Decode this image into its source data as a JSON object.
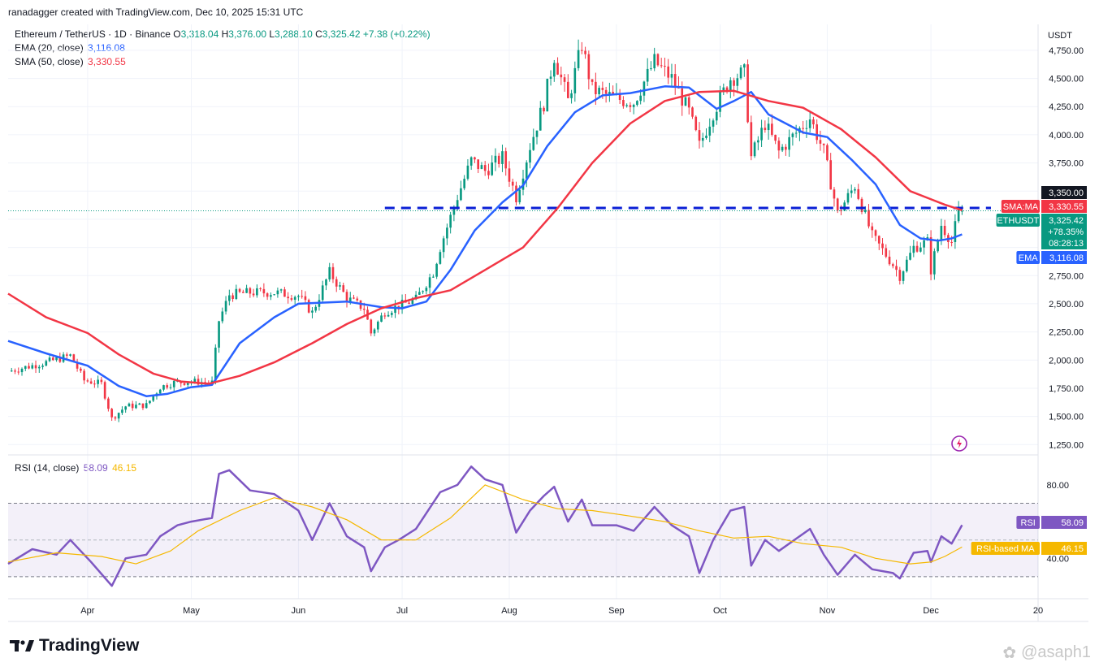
{
  "header": {
    "credit": "ranadagger created with TradingView.com, Dec 10, 2025 15:31 UTC"
  },
  "legend": {
    "symbol": "Ethereum / TetherUS · 1D · Binance",
    "o_label": "O",
    "o": "3,318.04",
    "h_label": "H",
    "h": "3,376.00",
    "l_label": "L",
    "l": "3,288.10",
    "c_label": "C",
    "c": "3,325.42",
    "change": "+7.38 (+0.22%)",
    "ema_label": "EMA (20, close)",
    "ema_value": "3,116.08",
    "sma_label": "SMA (50, close)",
    "sma_value": "3,330.55",
    "rsi_label": "RSI (14, close)",
    "rsi_value": "58.09",
    "rsi_ma_value": "46.15"
  },
  "currency": "USDT",
  "branding": {
    "name": "TradingView",
    "watermark": "@asaph1"
  },
  "price_tags": {
    "resistance": {
      "value": "3,350.00",
      "color": "#131722"
    },
    "sma": {
      "label": "SMA:MA",
      "value": "3,330.55",
      "color": "#f23645"
    },
    "last": {
      "label": "ETHUSDT",
      "value": "3,325.42",
      "change": "+78.35%",
      "countdown": "08:28:13",
      "color": "#089981"
    },
    "ema": {
      "label": "EMA",
      "value": "3,116.08",
      "color": "#2962ff"
    },
    "rsi": {
      "label": "RSI",
      "value": "58.09",
      "color": "#7e57c2"
    },
    "rsi_ma": {
      "label": "RSI-based MA",
      "value": "46.15",
      "color": "#f5b800"
    }
  },
  "chart_data": [
    {
      "type": "candlestick",
      "symbol": "ETHUSDT",
      "y_ticks": [
        "4,750.00",
        "4,500.00",
        "4,250.00",
        "4,000.00",
        "3,750.00",
        "3,500.00",
        "3,250.00",
        "3,000.00",
        "2,750.00",
        "2,500.00",
        "2,250.00",
        "2,000.00",
        "1,750.00",
        "1,500.00",
        "1,250.00"
      ],
      "y_tick_values": [
        4750,
        4500,
        4250,
        4000,
        3750,
        3500,
        3250,
        3000,
        2750,
        2500,
        2250,
        2000,
        1750,
        1500,
        1250
      ],
      "ylim": [
        1180,
        4980
      ],
      "x_ticks": [
        "Apr",
        "May",
        "Jun",
        "Jul",
        "Aug",
        "Sep",
        "Oct",
        "Nov",
        "Dec",
        "20"
      ],
      "x_tick_dates": [
        "2025-04-01",
        "2025-05-01",
        "2025-06-01",
        "2025-07-01",
        "2025-08-01",
        "2025-09-01",
        "2025-10-01",
        "2025-11-01",
        "2025-12-01",
        "2026-01-01"
      ],
      "date_range": [
        "2025-03-09",
        "2026-01-01"
      ],
      "horizontal_line": {
        "value": 3350,
        "style": "dashed",
        "color": "#0a1fd6"
      },
      "close_path": [
        [
          "2025-03-09",
          1900
        ],
        [
          "2025-03-20",
          1980
        ],
        [
          "2025-03-27",
          2040
        ],
        [
          "2025-03-31",
          1820
        ],
        [
          "2025-04-05",
          1790
        ],
        [
          "2025-04-08",
          1480
        ],
        [
          "2025-04-12",
          1590
        ],
        [
          "2025-04-18",
          1600
        ],
        [
          "2025-04-22",
          1760
        ],
        [
          "2025-04-26",
          1800
        ],
        [
          "2025-05-01",
          1810
        ],
        [
          "2025-05-07",
          1800
        ],
        [
          "2025-05-09",
          2350
        ],
        [
          "2025-05-12",
          2580
        ],
        [
          "2025-05-18",
          2600
        ],
        [
          "2025-05-25",
          2600
        ],
        [
          "2025-06-01",
          2570
        ],
        [
          "2025-06-05",
          2420
        ],
        [
          "2025-06-10",
          2780
        ],
        [
          "2025-06-15",
          2550
        ],
        [
          "2025-06-20",
          2460
        ],
        [
          "2025-06-22",
          2240
        ],
        [
          "2025-06-26",
          2430
        ],
        [
          "2025-06-30",
          2480
        ],
        [
          "2025-07-05",
          2540
        ],
        [
          "2025-07-10",
          2780
        ],
        [
          "2025-07-12",
          3000
        ],
        [
          "2025-07-17",
          3450
        ],
        [
          "2025-07-21",
          3770
        ],
        [
          "2025-07-25",
          3680
        ],
        [
          "2025-07-30",
          3800
        ],
        [
          "2025-08-03",
          3450
        ],
        [
          "2025-08-07",
          3900
        ],
        [
          "2025-08-11",
          4280
        ],
        [
          "2025-08-14",
          4700
        ],
        [
          "2025-08-18",
          4300
        ],
        [
          "2025-08-22",
          4800
        ],
        [
          "2025-08-25",
          4400
        ],
        [
          "2025-09-01",
          4320
        ],
        [
          "2025-09-06",
          4290
        ],
        [
          "2025-09-12",
          4650
        ],
        [
          "2025-09-17",
          4500
        ],
        [
          "2025-09-22",
          4200
        ],
        [
          "2025-09-25",
          3900
        ],
        [
          "2025-09-29",
          4200
        ],
        [
          "2025-10-04",
          4500
        ],
        [
          "2025-10-08",
          4550
        ],
        [
          "2025-10-10",
          3800
        ],
        [
          "2025-10-14",
          4100
        ],
        [
          "2025-10-18",
          3850
        ],
        [
          "2025-10-27",
          4150
        ],
        [
          "2025-10-31",
          3850
        ],
        [
          "2025-11-04",
          3300
        ],
        [
          "2025-11-09",
          3550
        ],
        [
          "2025-11-14",
          3100
        ],
        [
          "2025-11-20",
          2850
        ],
        [
          "2025-11-22",
          2750
        ],
        [
          "2025-11-26",
          3000
        ],
        [
          "2025-11-30",
          3050
        ],
        [
          "2025-12-01",
          2800
        ],
        [
          "2025-12-04",
          3200
        ],
        [
          "2025-12-07",
          3050
        ],
        [
          "2025-12-09",
          3320
        ],
        [
          "2025-12-10",
          3325.42
        ]
      ],
      "series": [
        {
          "name": "EMA (20, close)",
          "color": "#2962ff",
          "points": [
            [
              "2025-03-09",
              2170
            ],
            [
              "2025-03-20",
              2060
            ],
            [
              "2025-04-01",
              1950
            ],
            [
              "2025-04-10",
              1770
            ],
            [
              "2025-04-18",
              1680
            ],
            [
              "2025-04-24",
              1700
            ],
            [
              "2025-05-01",
              1760
            ],
            [
              "2025-05-07",
              1780
            ],
            [
              "2025-05-15",
              2150
            ],
            [
              "2025-05-25",
              2380
            ],
            [
              "2025-06-01",
              2500
            ],
            [
              "2025-06-15",
              2520
            ],
            [
              "2025-06-25",
              2470
            ],
            [
              "2025-07-01",
              2460
            ],
            [
              "2025-07-08",
              2520
            ],
            [
              "2025-07-15",
              2800
            ],
            [
              "2025-07-22",
              3150
            ],
            [
              "2025-07-30",
              3400
            ],
            [
              "2025-08-05",
              3550
            ],
            [
              "2025-08-12",
              3900
            ],
            [
              "2025-08-20",
              4200
            ],
            [
              "2025-08-28",
              4350
            ],
            [
              "2025-09-05",
              4370
            ],
            [
              "2025-09-15",
              4430
            ],
            [
              "2025-09-22",
              4420
            ],
            [
              "2025-09-30",
              4230
            ],
            [
              "2025-10-05",
              4300
            ],
            [
              "2025-10-10",
              4380
            ],
            [
              "2025-10-15",
              4180
            ],
            [
              "2025-10-25",
              4020
            ],
            [
              "2025-11-01",
              3980
            ],
            [
              "2025-11-08",
              3780
            ],
            [
              "2025-11-15",
              3560
            ],
            [
              "2025-11-22",
              3200
            ],
            [
              "2025-11-28",
              3080
            ],
            [
              "2025-12-03",
              3060
            ],
            [
              "2025-12-07",
              3080
            ],
            [
              "2025-12-10",
              3116.08
            ]
          ]
        },
        {
          "name": "SMA (50, close)",
          "color": "#f23645",
          "points": [
            [
              "2025-03-09",
              2590
            ],
            [
              "2025-03-20",
              2380
            ],
            [
              "2025-04-01",
              2240
            ],
            [
              "2025-04-10",
              2050
            ],
            [
              "2025-04-20",
              1880
            ],
            [
              "2025-04-28",
              1810
            ],
            [
              "2025-05-06",
              1790
            ],
            [
              "2025-05-15",
              1860
            ],
            [
              "2025-05-25",
              1980
            ],
            [
              "2025-06-05",
              2150
            ],
            [
              "2025-06-15",
              2320
            ],
            [
              "2025-06-25",
              2460
            ],
            [
              "2025-07-05",
              2550
            ],
            [
              "2025-07-15",
              2620
            ],
            [
              "2025-07-25",
              2800
            ],
            [
              "2025-08-05",
              3000
            ],
            [
              "2025-08-15",
              3350
            ],
            [
              "2025-08-25",
              3750
            ],
            [
              "2025-09-05",
              4100
            ],
            [
              "2025-09-15",
              4300
            ],
            [
              "2025-09-25",
              4380
            ],
            [
              "2025-10-05",
              4390
            ],
            [
              "2025-10-15",
              4300
            ],
            [
              "2025-10-25",
              4240
            ],
            [
              "2025-11-05",
              4050
            ],
            [
              "2025-11-15",
              3800
            ],
            [
              "2025-11-25",
              3500
            ],
            [
              "2025-12-05",
              3380
            ],
            [
              "2025-12-10",
              3330.55
            ]
          ]
        }
      ]
    },
    {
      "type": "line",
      "title": "RSI (14, close)",
      "y_ticks": [
        "80.00",
        "40.00"
      ],
      "y_tick_values": [
        80,
        40
      ],
      "band": [
        30,
        70
      ],
      "midline": 50,
      "ylim": [
        18,
        95
      ],
      "series": [
        {
          "name": "RSI",
          "color": "#7e57c2",
          "points": [
            [
              "2025-03-09",
              37
            ],
            [
              "2025-03-16",
              45
            ],
            [
              "2025-03-23",
              42
            ],
            [
              "2025-03-27",
              50
            ],
            [
              "2025-04-02",
              38
            ],
            [
              "2025-04-08",
              25
            ],
            [
              "2025-04-12",
              40
            ],
            [
              "2025-04-18",
              42
            ],
            [
              "2025-04-22",
              52
            ],
            [
              "2025-04-27",
              58
            ],
            [
              "2025-05-01",
              60
            ],
            [
              "2025-05-07",
              62
            ],
            [
              "2025-05-09",
              86
            ],
            [
              "2025-05-12",
              88
            ],
            [
              "2025-05-18",
              77
            ],
            [
              "2025-05-25",
              75
            ],
            [
              "2025-06-01",
              66
            ],
            [
              "2025-06-05",
              50
            ],
            [
              "2025-06-10",
              70
            ],
            [
              "2025-06-15",
              52
            ],
            [
              "2025-06-20",
              46
            ],
            [
              "2025-06-22",
              33
            ],
            [
              "2025-06-26",
              46
            ],
            [
              "2025-06-30",
              50
            ],
            [
              "2025-07-05",
              56
            ],
            [
              "2025-07-12",
              76
            ],
            [
              "2025-07-17",
              80
            ],
            [
              "2025-07-21",
              90
            ],
            [
              "2025-07-25",
              83
            ],
            [
              "2025-07-30",
              80
            ],
            [
              "2025-08-03",
              54
            ],
            [
              "2025-08-07",
              66
            ],
            [
              "2025-08-11",
              74
            ],
            [
              "2025-08-14",
              79
            ],
            [
              "2025-08-18",
              60
            ],
            [
              "2025-08-22",
              72
            ],
            [
              "2025-08-25",
              58
            ],
            [
              "2025-09-01",
              58
            ],
            [
              "2025-09-06",
              55
            ],
            [
              "2025-09-12",
              68
            ],
            [
              "2025-09-17",
              58
            ],
            [
              "2025-09-22",
              52
            ],
            [
              "2025-09-25",
              32
            ],
            [
              "2025-09-29",
              50
            ],
            [
              "2025-10-04",
              66
            ],
            [
              "2025-10-08",
              68
            ],
            [
              "2025-10-10",
              36
            ],
            [
              "2025-10-14",
              50
            ],
            [
              "2025-10-18",
              44
            ],
            [
              "2025-10-27",
              56
            ],
            [
              "2025-10-31",
              42
            ],
            [
              "2025-11-04",
              31
            ],
            [
              "2025-11-09",
              42
            ],
            [
              "2025-11-14",
              34
            ],
            [
              "2025-11-20",
              32
            ],
            [
              "2025-11-22",
              29
            ],
            [
              "2025-11-26",
              43
            ],
            [
              "2025-11-30",
              44
            ],
            [
              "2025-12-01",
              38
            ],
            [
              "2025-12-04",
              52
            ],
            [
              "2025-12-07",
              48
            ],
            [
              "2025-12-10",
              58.09
            ]
          ]
        },
        {
          "name": "RSI-based MA",
          "color": "#f5b800",
          "points": [
            [
              "2025-03-09",
              38
            ],
            [
              "2025-03-23",
              43
            ],
            [
              "2025-04-05",
              41
            ],
            [
              "2025-04-15",
              37
            ],
            [
              "2025-04-25",
              44
            ],
            [
              "2025-05-03",
              55
            ],
            [
              "2025-05-15",
              66
            ],
            [
              "2025-05-25",
              73
            ],
            [
              "2025-06-05",
              68
            ],
            [
              "2025-06-15",
              61
            ],
            [
              "2025-06-25",
              50
            ],
            [
              "2025-07-05",
              50
            ],
            [
              "2025-07-15",
              62
            ],
            [
              "2025-07-25",
              80
            ],
            [
              "2025-08-05",
              72
            ],
            [
              "2025-08-15",
              67
            ],
            [
              "2025-08-25",
              66
            ],
            [
              "2025-09-05",
              63
            ],
            [
              "2025-09-15",
              60
            ],
            [
              "2025-09-25",
              55
            ],
            [
              "2025-10-05",
              51
            ],
            [
              "2025-10-15",
              52
            ],
            [
              "2025-10-25",
              48
            ],
            [
              "2025-11-05",
              46
            ],
            [
              "2025-11-15",
              40
            ],
            [
              "2025-11-25",
              37
            ],
            [
              "2025-12-01",
              38
            ],
            [
              "2025-12-05",
              41
            ],
            [
              "2025-12-10",
              46.15
            ]
          ]
        }
      ]
    }
  ]
}
